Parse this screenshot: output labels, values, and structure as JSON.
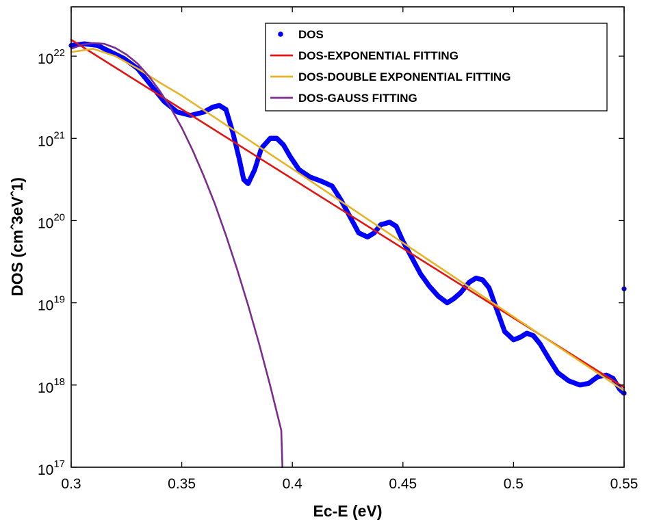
{
  "chart_data": {
    "type": "line",
    "xlabel": "Ec-E (eV)",
    "ylabel": "DOS (cm^-3eV^-1)",
    "ylabel_display": "DOS (cmˆ3eVˆ1)",
    "xlim": [
      0.3,
      0.55
    ],
    "ylim_log10": [
      17,
      22.6
    ],
    "yscale": "log",
    "grid": false,
    "legend_position": "top-right",
    "x_ticks": [
      "0.3",
      "0.35",
      "0.4",
      "0.45",
      "0.5",
      "0.55"
    ],
    "y_ticks": [
      {
        "base": "10",
        "exp": "17"
      },
      {
        "base": "10",
        "exp": "18"
      },
      {
        "base": "10",
        "exp": "19"
      },
      {
        "base": "10",
        "exp": "20"
      },
      {
        "base": "10",
        "exp": "21"
      },
      {
        "base": "10",
        "exp": "22"
      }
    ],
    "series": [
      {
        "name": "DOS",
        "style": "dots",
        "color": "#0000ff",
        "x": [
          0.3,
          0.306,
          0.312,
          0.318,
          0.324,
          0.33,
          0.336,
          0.342,
          0.348,
          0.354,
          0.36,
          0.364,
          0.367,
          0.37,
          0.373,
          0.376,
          0.378,
          0.38,
          0.383,
          0.386,
          0.39,
          0.393,
          0.396,
          0.399,
          0.403,
          0.408,
          0.413,
          0.418,
          0.422,
          0.426,
          0.43,
          0.434,
          0.437,
          0.44,
          0.444,
          0.447,
          0.45,
          0.454,
          0.458,
          0.462,
          0.466,
          0.47,
          0.473,
          0.476,
          0.48,
          0.483,
          0.486,
          0.489,
          0.492,
          0.496,
          0.5,
          0.503,
          0.506,
          0.509,
          0.512,
          0.516,
          0.52,
          0.525,
          0.53,
          0.534,
          0.538,
          0.542,
          0.545,
          0.548,
          0.55
        ],
        "log10_y": [
          22.13,
          22.15,
          22.13,
          22.05,
          21.97,
          21.85,
          21.65,
          21.45,
          21.32,
          21.28,
          21.32,
          21.38,
          21.4,
          21.35,
          21.08,
          20.75,
          20.5,
          20.45,
          20.62,
          20.88,
          21.0,
          21.0,
          20.92,
          20.78,
          20.62,
          20.53,
          20.48,
          20.42,
          20.25,
          20.05,
          19.85,
          19.8,
          19.85,
          19.95,
          19.98,
          19.93,
          19.75,
          19.55,
          19.35,
          19.2,
          19.08,
          19.0,
          19.05,
          19.12,
          19.25,
          19.3,
          19.28,
          19.18,
          18.95,
          18.65,
          18.55,
          18.58,
          18.63,
          18.6,
          18.5,
          18.32,
          18.15,
          18.05,
          18.0,
          18.02,
          18.1,
          18.12,
          18.08,
          17.95,
          17.9
        ],
        "outlier": {
          "x": 0.55,
          "log10_y": 19.17
        }
      },
      {
        "name": "DOS-EXPONENTIAL FITTING",
        "style": "line",
        "color": "#e3140f",
        "x": [
          0.3,
          0.55
        ],
        "log10_y": [
          22.2,
          17.97
        ]
      },
      {
        "name": "DOS-DOUBLE EXPONENTIAL FITTING",
        "style": "line",
        "color": "#e8b224",
        "x": [
          0.3,
          0.31,
          0.32,
          0.33,
          0.34,
          0.35,
          0.4,
          0.45,
          0.5,
          0.55
        ],
        "log10_y": [
          22.05,
          22.09,
          22.0,
          21.85,
          21.68,
          21.52,
          20.63,
          19.73,
          18.83,
          17.93
        ]
      },
      {
        "name": "DOS-GAUSS FITTING",
        "style": "line",
        "color": "#7b2d8e",
        "x": [
          0.3,
          0.305,
          0.31,
          0.315,
          0.32,
          0.325,
          0.33,
          0.335,
          0.34,
          0.345,
          0.35,
          0.355,
          0.36,
          0.365,
          0.37,
          0.375,
          0.38,
          0.385,
          0.39,
          0.395,
          0.3955
        ],
        "log10_y": [
          22.09,
          22.14,
          22.16,
          22.15,
          22.1,
          22.02,
          21.91,
          21.76,
          21.58,
          21.37,
          21.13,
          20.85,
          20.54,
          20.2,
          19.82,
          19.41,
          18.97,
          18.5,
          17.99,
          17.45,
          17.0
        ]
      }
    ]
  }
}
